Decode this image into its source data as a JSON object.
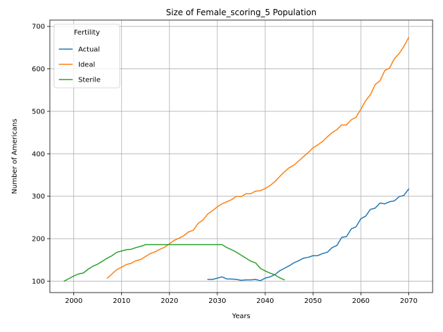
{
  "chart_data": {
    "type": "line",
    "title": "Size of Female_scoring_5 Population",
    "xlabel": "Years",
    "ylabel": "Number of Americans",
    "xlim": [
      1995,
      2075
    ],
    "ylim": [
      73,
      715
    ],
    "xticks": [
      2000,
      2010,
      2020,
      2030,
      2040,
      2050,
      2060,
      2070
    ],
    "yticks": [
      100,
      200,
      300,
      400,
      500,
      600,
      700
    ],
    "grid": true,
    "legend": {
      "title": "Fertility",
      "position": "top-left"
    },
    "series": [
      {
        "name": "Actual",
        "color": "#1f77b4",
        "x": [
          2028,
          2029,
          2030,
          2031,
          2032,
          2033,
          2034,
          2035,
          2036,
          2037,
          2038,
          2039,
          2040,
          2041,
          2042,
          2043,
          2044,
          2045,
          2046,
          2047,
          2048,
          2049,
          2050,
          2051,
          2052,
          2053,
          2054,
          2055,
          2056,
          2057,
          2058,
          2059,
          2060,
          2061,
          2062,
          2063,
          2064,
          2065,
          2066,
          2067,
          2068,
          2069,
          2070
        ],
        "y": [
          104,
          104,
          107,
          110,
          105,
          105,
          104,
          102,
          103,
          103,
          104,
          101,
          107,
          110,
          115,
          124,
          130,
          136,
          143,
          148,
          154,
          156,
          160,
          160,
          165,
          168,
          179,
          184,
          203,
          205,
          223,
          228,
          247,
          253,
          269,
          272,
          284,
          282,
          287,
          289,
          299,
          302,
          317
        ]
      },
      {
        "name": "Ideal",
        "color": "#ff7f0e",
        "x": [
          2007,
          2008,
          2009,
          2010,
          2011,
          2012,
          2013,
          2014,
          2015,
          2016,
          2017,
          2018,
          2019,
          2020,
          2021,
          2022,
          2023,
          2024,
          2025,
          2026,
          2027,
          2028,
          2029,
          2030,
          2031,
          2032,
          2033,
          2034,
          2035,
          2036,
          2037,
          2038,
          2039,
          2040,
          2041,
          2042,
          2043,
          2044,
          2045,
          2046,
          2047,
          2048,
          2049,
          2050,
          2051,
          2052,
          2053,
          2054,
          2055,
          2056,
          2057,
          2058,
          2059,
          2060,
          2061,
          2062,
          2063,
          2064,
          2065,
          2066,
          2067,
          2068,
          2069,
          2070
        ],
        "y": [
          107,
          117,
          127,
          133,
          139,
          142,
          148,
          151,
          158,
          165,
          169,
          175,
          180,
          188,
          196,
          201,
          207,
          216,
          220,
          236,
          244,
          258,
          266,
          275,
          282,
          287,
          292,
          300,
          299,
          306,
          306,
          312,
          313,
          318,
          325,
          334,
          346,
          357,
          367,
          373,
          383,
          393,
          403,
          414,
          421,
          429,
          440,
          450,
          457,
          468,
          468,
          480,
          486,
          505,
          525,
          539,
          563,
          572,
          596,
          602,
          624,
          636,
          653,
          674
        ]
      },
      {
        "name": "Sterile",
        "color": "#2ca02c",
        "x": [
          1998,
          1999,
          2000,
          2001,
          2002,
          2003,
          2004,
          2005,
          2006,
          2007,
          2008,
          2009,
          2010,
          2011,
          2012,
          2013,
          2014,
          2015,
          2016,
          2017,
          2018,
          2019,
          2020,
          2021,
          2022,
          2023,
          2024,
          2025,
          2026,
          2027,
          2028,
          2029,
          2030,
          2031,
          2032,
          2033,
          2034,
          2035,
          2036,
          2037,
          2038,
          2039,
          2040,
          2041,
          2042,
          2043,
          2044
        ],
        "y": [
          100,
          106,
          112,
          117,
          119,
          128,
          135,
          140,
          147,
          154,
          160,
          168,
          171,
          174,
          175,
          179,
          182,
          186,
          186,
          186,
          186,
          186,
          186,
          186,
          186,
          186,
          186,
          186,
          186,
          186,
          186,
          186,
          186,
          186,
          179,
          174,
          168,
          161,
          154,
          147,
          143,
          130,
          124,
          119,
          115,
          108,
          103
        ]
      }
    ]
  }
}
